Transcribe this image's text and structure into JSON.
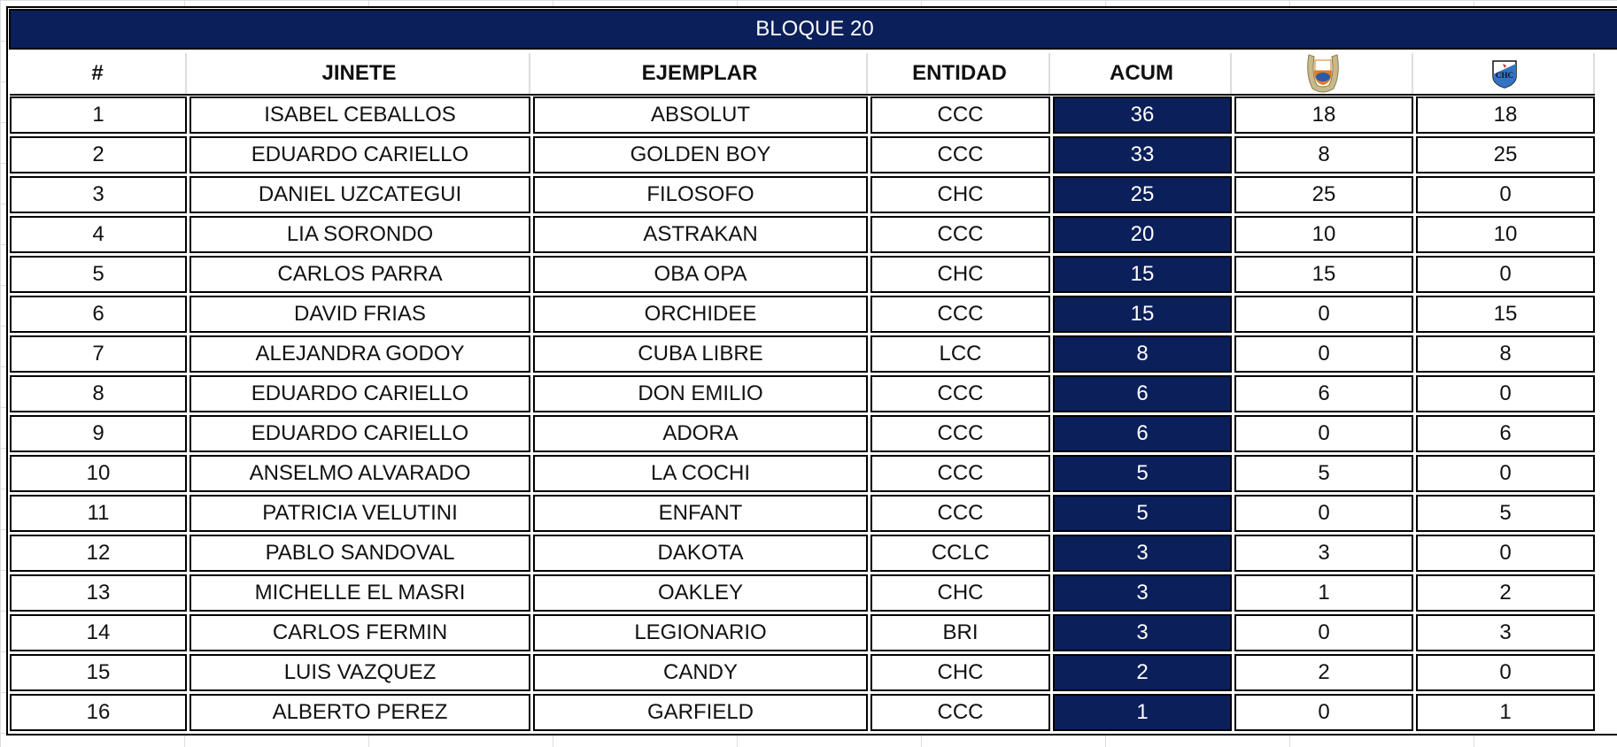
{
  "title": "BLOQUE 20",
  "columns": [
    "#",
    "JINETE",
    "EJEMPLAR",
    "ENTIDAD",
    "ACUM"
  ],
  "logo_columns": [
    {
      "icon": "club-crest-horseshoe-icon"
    },
    {
      "icon": "chc-shield-icon"
    }
  ],
  "colors": {
    "accent": "#0b1f5a"
  },
  "rows": [
    [
      "1",
      "ISABEL CEBALLOS",
      "ABSOLUT",
      "CCC",
      "36",
      "18",
      "18"
    ],
    [
      "2",
      "EDUARDO CARIELLO",
      "GOLDEN BOY",
      "CCC",
      "33",
      "8",
      "25"
    ],
    [
      "3",
      "DANIEL UZCATEGUI",
      "FILOSOFO",
      "CHC",
      "25",
      "25",
      "0"
    ],
    [
      "4",
      "LIA SORONDO",
      "ASTRAKAN",
      "CCC",
      "20",
      "10",
      "10"
    ],
    [
      "5",
      "CARLOS PARRA",
      "OBA OPA",
      "CHC",
      "15",
      "15",
      "0"
    ],
    [
      "6",
      "DAVID FRIAS",
      "ORCHIDEE",
      "CCC",
      "15",
      "0",
      "15"
    ],
    [
      "7",
      "ALEJANDRA GODOY",
      "CUBA LIBRE",
      "LCC",
      "8",
      "0",
      "8"
    ],
    [
      "8",
      "EDUARDO CARIELLO",
      "DON EMILIO",
      "CCC",
      "6",
      "6",
      "0"
    ],
    [
      "9",
      "EDUARDO CARIELLO",
      "ADORA",
      "CCC",
      "6",
      "0",
      "6"
    ],
    [
      "10",
      "ANSELMO ALVARADO",
      "LA COCHI",
      "CCC",
      "5",
      "5",
      "0"
    ],
    [
      "11",
      "PATRICIA VELUTINI",
      "ENFANT",
      "CCC",
      "5",
      "0",
      "5"
    ],
    [
      "12",
      "PABLO SANDOVAL",
      "DAKOTA",
      "CCLC",
      "3",
      "3",
      "0"
    ],
    [
      "13",
      "MICHELLE EL MASRI",
      "OAKLEY",
      "CHC",
      "3",
      "1",
      "2"
    ],
    [
      "14",
      "CARLOS FERMIN",
      "LEGIONARIO",
      "BRI",
      "3",
      "0",
      "3"
    ],
    [
      "15",
      "LUIS VAZQUEZ",
      "CANDY",
      "CHC",
      "2",
      "2",
      "0"
    ],
    [
      "16",
      "ALBERTO PEREZ",
      "GARFIELD",
      "CCC",
      "1",
      "0",
      "1"
    ]
  ]
}
